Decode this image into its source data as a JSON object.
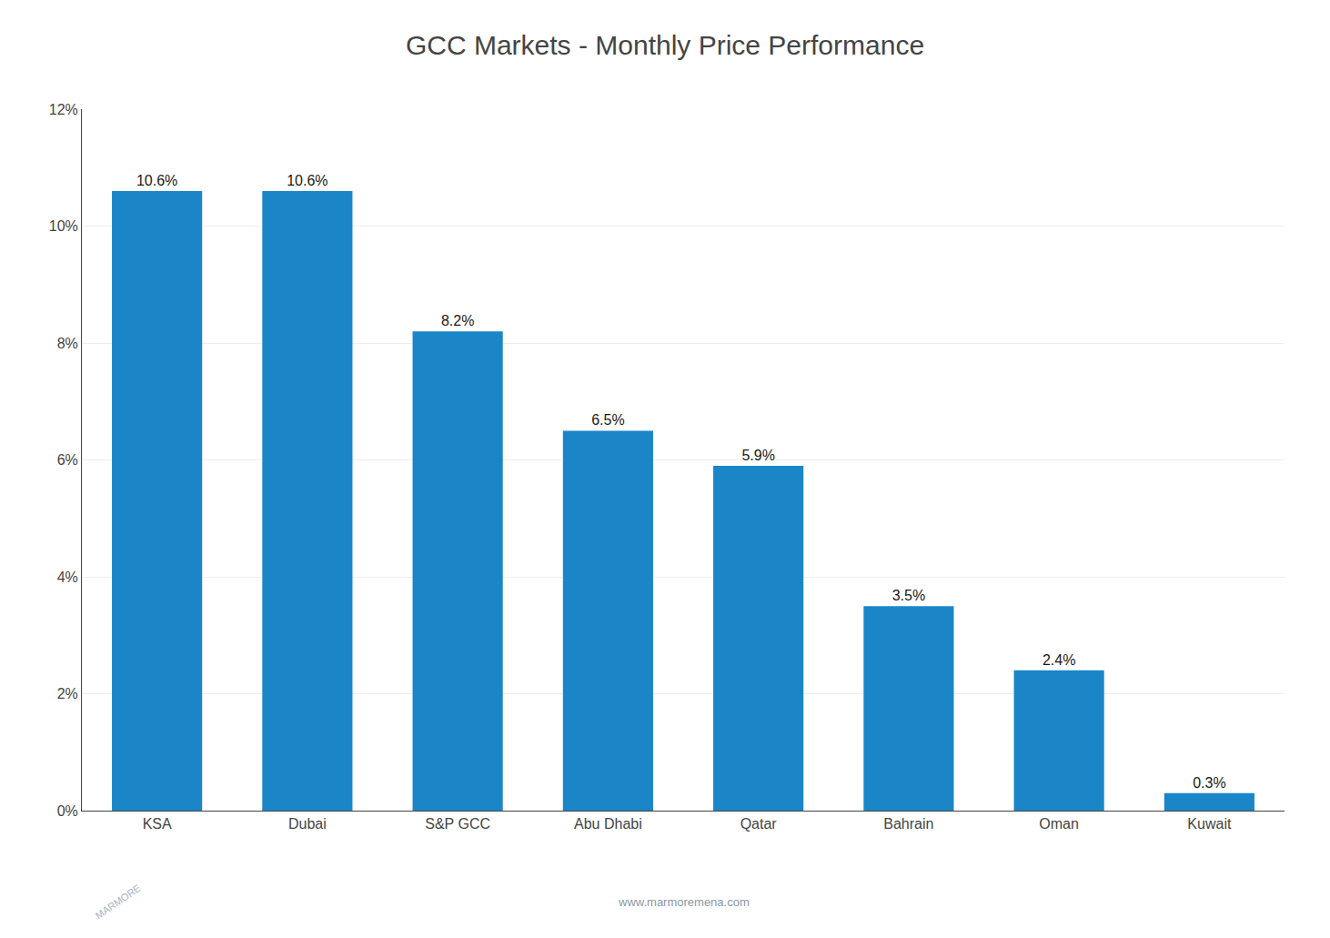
{
  "chart_data": {
    "type": "bar",
    "title": "GCC Markets - Monthly Price Performance",
    "categories": [
      "KSA",
      "Dubai",
      "S&P GCC",
      "Abu Dhabi",
      "Qatar",
      "Bahrain",
      "Oman",
      "Kuwait"
    ],
    "values": [
      10.6,
      10.6,
      8.2,
      6.5,
      5.9,
      3.5,
      2.4,
      0.3
    ],
    "value_labels": [
      "10.6%",
      "10.6%",
      "8.2%",
      "6.5%",
      "5.9%",
      "3.5%",
      "2.4%",
      "0.3%"
    ],
    "data_labels": true,
    "color": "#1a86c8",
    "ylim": [
      0,
      12
    ],
    "yticks": [
      {
        "value": 0,
        "label": "0%"
      },
      {
        "value": 2,
        "label": "2%"
      },
      {
        "value": 4,
        "label": "4%"
      },
      {
        "value": 6,
        "label": "6%"
      },
      {
        "value": 8,
        "label": "8%"
      },
      {
        "value": 10,
        "label": "10%"
      },
      {
        "value": 12,
        "label": "12%"
      }
    ],
    "grid": true,
    "annotations": [
      "www.marmoremena.com",
      "MARMORE"
    ]
  }
}
